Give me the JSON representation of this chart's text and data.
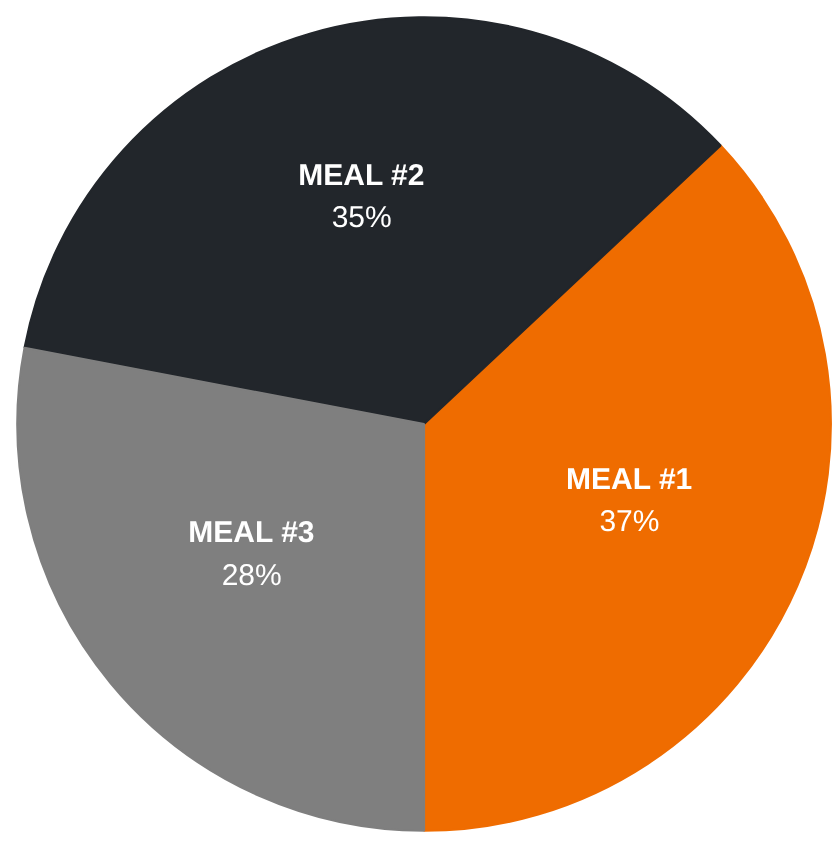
{
  "chart_data": {
    "type": "pie",
    "categories": [
      "MEAL #1",
      "MEAL #2",
      "MEAL #3"
    ],
    "values": [
      37,
      35,
      28
    ],
    "colors": [
      "#ef6c00",
      "#22262b",
      "#7f7f7f"
    ],
    "value_labels": [
      "37%",
      "35%",
      "28%"
    ]
  }
}
